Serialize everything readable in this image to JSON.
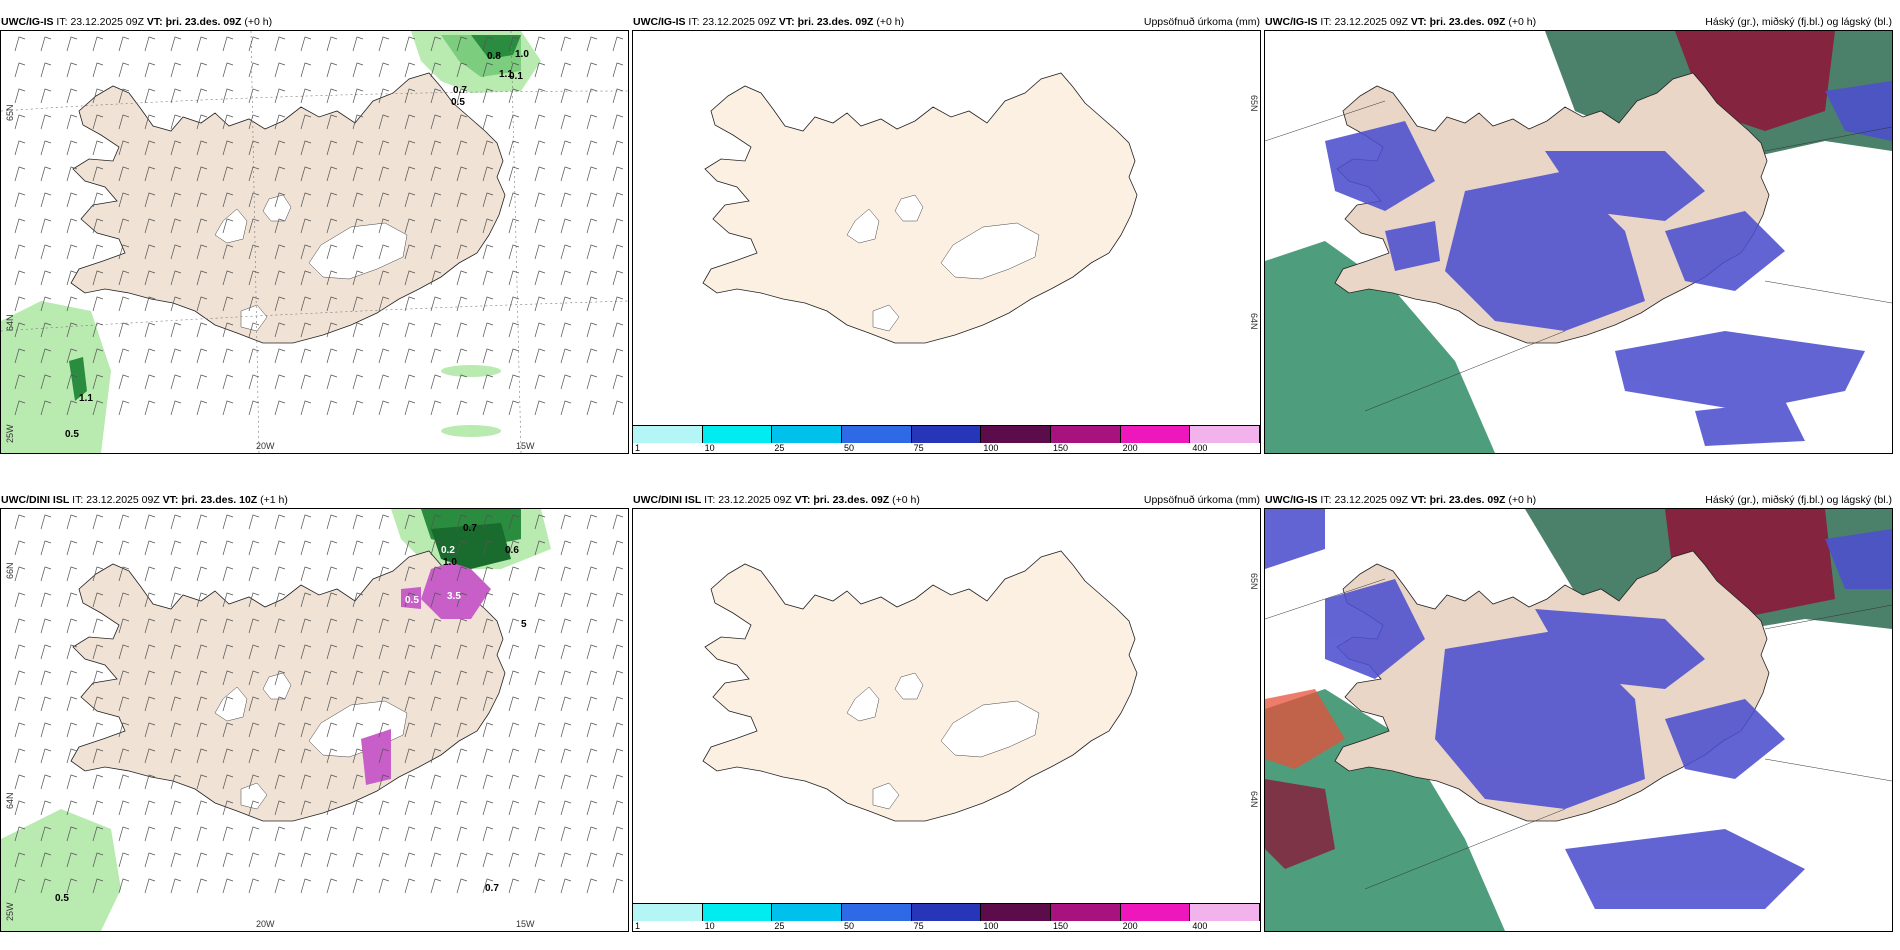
{
  "panels": [
    {
      "id": "ig-wind",
      "model": "UWC/IG-IS",
      "it_label": "IT:",
      "it": "23.12.2025 09Z",
      "vt_label": "VT:",
      "vt": "þri. 23.des. 09Z",
      "lead": "(+0 h)",
      "right_title": "",
      "lon_labels": [
        "20W",
        "15W"
      ],
      "lat_labels": [
        "65N",
        "64N",
        "25W"
      ],
      "values": [
        "0.8",
        "1.0",
        "0.7",
        "0.5",
        "1.1",
        "0.1",
        "1.1",
        "0.5"
      ]
    },
    {
      "id": "ig-precip",
      "model": "UWC/IG-IS",
      "it_label": "IT:",
      "it": "23.12.2025 09Z",
      "vt_label": "VT:",
      "vt": "þri. 23.des. 09Z",
      "lead": "(+0 h)",
      "right_title": "Uppsöfnuð úrkoma (mm)",
      "lat_labels": [
        "65N",
        "64N"
      ]
    },
    {
      "id": "ig-cloud",
      "model": "UWC/IG-IS",
      "it_label": "IT:",
      "it": "23.12.2025 09Z",
      "vt_label": "VT:",
      "vt": "þri. 23.des. 09Z",
      "lead": "(+0 h)",
      "right_title": "Háský (gr.), miðský (fj.bl.) og lágský (bl.)"
    },
    {
      "id": "dini-wind",
      "model": "UWC/DINI ISL",
      "it_label": "IT:",
      "it": "23.12.2025 09Z",
      "vt_label": "VT:",
      "vt": "þri. 23.des. 10Z",
      "lead": "(+1 h)",
      "right_title": "",
      "lon_labels": [
        "20W",
        "15W"
      ],
      "lat_labels": [
        "66N",
        "64N",
        "25W"
      ],
      "values": [
        "0.7",
        "0.6",
        "1.0",
        "0.2",
        "0.5",
        "3.5",
        "5",
        "0.7",
        "0.5"
      ]
    },
    {
      "id": "dini-precip",
      "model": "UWC/DINI ISL",
      "it_label": "IT:",
      "it": "23.12.2025 09Z",
      "vt_label": "VT:",
      "vt": "þri. 23.des. 09Z",
      "lead": "(+0 h)",
      "right_title": "Uppsöfnuð úrkoma (mm)",
      "lat_labels": [
        "65N",
        "64N"
      ]
    },
    {
      "id": "dini-cloud",
      "model": "UWC/IG-IS",
      "it_label": "IT:",
      "it": "23.12.2025 09Z",
      "vt_label": "VT:",
      "vt": "þri. 23.des. 09Z",
      "lead": "(+0 h)",
      "right_title": "Háský (gr.), miðský (fj.bl.) og lágský (bl.)"
    }
  ],
  "colorbar": {
    "ticks": [
      "1",
      "10",
      "25",
      "50",
      "75",
      "100",
      "150",
      "200",
      "400"
    ],
    "colors": [
      "#b4f5f5",
      "#00ecf0",
      "#00c0ec",
      "#2f6ae6",
      "#2736b8",
      "#5c0c4a",
      "#a8127e",
      "#ee17bc",
      "#f2b2ec"
    ]
  },
  "colors": {
    "land": "#f0e2d4",
    "land_precip": "#fcf0e2",
    "low_cloud": "#4d4fcf",
    "mid_cloud": "#1f7a5a",
    "high_cloud": "#8b1a3a",
    "precip_light": "#b9eab0"
  }
}
